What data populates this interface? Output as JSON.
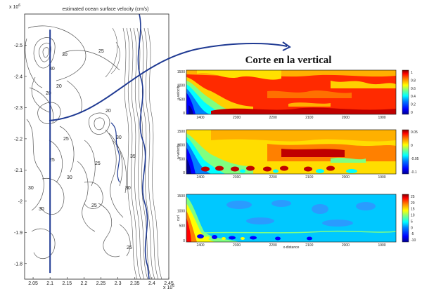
{
  "colors": {
    "contour": "#555555",
    "coast": "#1f3a93",
    "transect": "#1f3a93",
    "jet": [
      "#00008f",
      "#0000ff",
      "#0080ff",
      "#00ffff",
      "#80ff80",
      "#ffff00",
      "#ff8000",
      "#ff0000",
      "#800000"
    ]
  },
  "left_plot": {
    "title": "estimated ocean surface velocity (cm/s)",
    "y_exp": "x 10",
    "y_exp_power": "6",
    "x_exp": "x 10",
    "x_exp_power": "6",
    "contour_labels": [
      "25",
      "30",
      "30",
      "20",
      "20",
      "25",
      "25",
      "30",
      "30",
      "30",
      "35",
      "30",
      "25",
      "25",
      "20",
      "25",
      "30"
    ]
  },
  "heading": "Corte en la vertical",
  "panels": [
    {
      "ylabel": "u-velocity",
      "cb_ticks": [
        "1",
        "0.8",
        "0.6",
        "0.4",
        "0.2",
        "0"
      ]
    },
    {
      "ylabel": "w-velocity",
      "cb_ticks": [
        "0.05",
        "0",
        "-0.05",
        "-0.1"
      ]
    },
    {
      "ylabel": "curl",
      "cb_ticks": [
        "25",
        "20",
        "15",
        "10",
        "5",
        "0",
        "-5",
        "-10"
      ]
    }
  ],
  "section_xlabel": "x-distance",
  "chart_data": [
    {
      "type": "line",
      "title": "estimated ocean surface velocity (cm/s)",
      "xlim": [
        2.025,
        2.45
      ],
      "ylim": [
        -2.6,
        -1.75
      ],
      "x_ticks": [
        "2.05",
        "2.1",
        "2.15",
        "2.2",
        "2.25",
        "2.3",
        "2.35",
        "2.4",
        "2.45"
      ],
      "y_ticks": [
        "-2.5",
        "-2.4",
        "-2.3",
        "-2.2",
        "-2.1",
        "-2",
        "-1.9",
        "-1.8"
      ],
      "x_tick_values": [
        2.05,
        2.1,
        2.15,
        2.2,
        2.25,
        2.3,
        2.35,
        2.4,
        2.45
      ],
      "y_tick_values": [
        -2.5,
        -2.4,
        -2.3,
        -2.2,
        -2.1,
        -2.0,
        -1.9,
        -1.8
      ],
      "series": [
        {
          "x": [
            2.1,
            2.1
          ],
          "y": [
            -2.55,
            -1.77
          ]
        }
      ]
    },
    {
      "type": "heatmap",
      "ylabel": "u-velocity",
      "x_ticks": [
        "2400",
        "2300",
        "2200",
        "2100",
        "2000",
        "1900"
      ],
      "y_ticks": [
        "1500",
        "1000",
        "500",
        "0"
      ],
      "colorbar_range": [
        0,
        1
      ]
    },
    {
      "type": "heatmap",
      "ylabel": "w-velocity",
      "x_ticks": [
        "2400",
        "2300",
        "2200",
        "2100",
        "2000",
        "1900"
      ],
      "y_ticks": [
        "1500",
        "1000",
        "500",
        "0"
      ],
      "colorbar_range": [
        -0.1,
        0.05
      ]
    },
    {
      "type": "heatmap",
      "ylabel": "curl",
      "xlabel": "x-distance",
      "x_ticks": [
        "2400",
        "2300",
        "2200",
        "2100",
        "2000",
        "1900"
      ],
      "y_ticks": [
        "1500",
        "1000",
        "500",
        "0"
      ],
      "colorbar_range": [
        -10,
        25
      ]
    }
  ]
}
